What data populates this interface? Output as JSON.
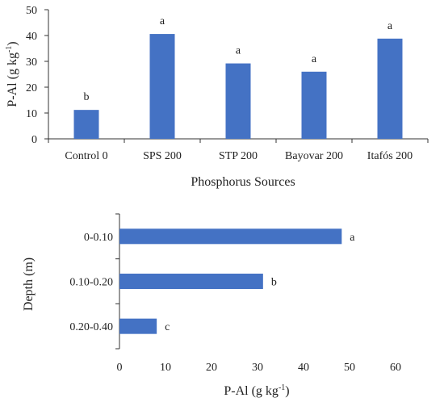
{
  "chart_data": [
    {
      "type": "bar",
      "orientation": "vertical",
      "categories": [
        "Control 0",
        "SPS 200",
        "STP 200",
        "Bayovar 200",
        "Itafós 200"
      ],
      "values": [
        11.2,
        40.6,
        29.2,
        26.0,
        38.8
      ],
      "significance_letters": [
        "b",
        "a",
        "a",
        "a",
        "a"
      ],
      "xlabel": "Phosphorus Sources",
      "ylabel": "P-Al (g kg-1)",
      "ylabel_parts": {
        "main": "P-Al (g kg",
        "sup": "-1",
        "end": ")"
      },
      "ylim": [
        0,
        50
      ],
      "yticks": [
        0,
        10,
        20,
        30,
        40,
        50
      ],
      "bar_color": "#4472C4",
      "grid": false,
      "legend": "none"
    },
    {
      "type": "bar",
      "orientation": "horizontal",
      "categories": [
        "0-0.10",
        "0.10-0.20",
        "0.20-0.40"
      ],
      "values": [
        48.3,
        31.2,
        8.1
      ],
      "significance_letters": [
        "a",
        "b",
        "c"
      ],
      "xlabel": "P-Al (g kg-1)",
      "xlabel_parts": {
        "main": "P-Al (g kg",
        "sup": "-1",
        "end": ")"
      },
      "ylabel": "Depth (m)",
      "xlim": [
        0,
        60
      ],
      "xticks": [
        0,
        10,
        20,
        30,
        40,
        50,
        60
      ],
      "bar_color": "#4472C4",
      "grid": false,
      "legend": "none"
    }
  ]
}
